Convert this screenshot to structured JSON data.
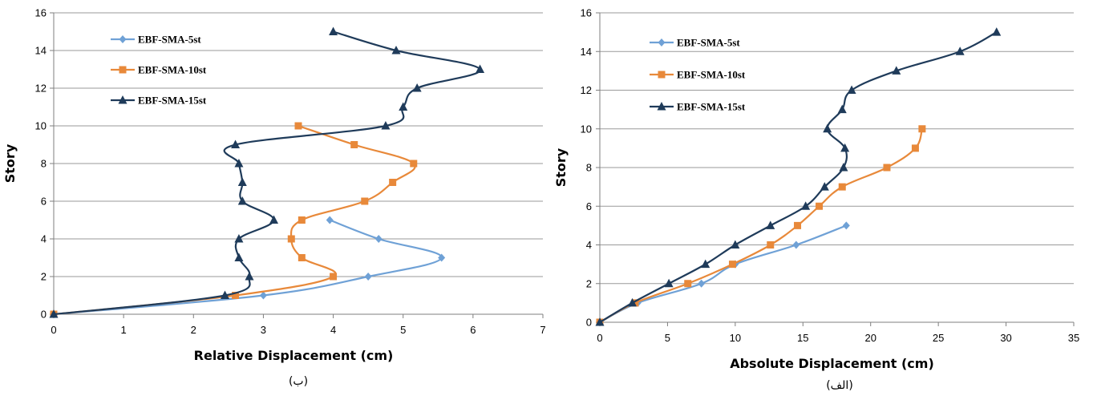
{
  "colors": {
    "EBF-SMA-5st": "#6fa1d6",
    "EBF-SMA-10st": "#e8893a",
    "EBF-SMA-15st": "#1f3b5a",
    "grid": "#9a9a9a"
  },
  "chart_data": [
    {
      "id": "left",
      "type": "line",
      "caption": "(ب)",
      "xlabel": "Relative Displacement (cm)",
      "ylabel": "Story",
      "xlim": [
        0,
        7
      ],
      "ylim": [
        0,
        16
      ],
      "xticks": [
        0,
        1,
        2,
        3,
        4,
        5,
        6,
        7
      ],
      "yticks": [
        0,
        2,
        4,
        6,
        8,
        10,
        12,
        14,
        16
      ],
      "grid": "horizontal",
      "legend_position": "top-left",
      "series": [
        {
          "name": "EBF-SMA-5st",
          "marker": "diamond",
          "points": [
            [
              0,
              0
            ],
            [
              3.0,
              1
            ],
            [
              4.5,
              2
            ],
            [
              5.55,
              3
            ],
            [
              4.65,
              4
            ],
            [
              3.95,
              5
            ]
          ]
        },
        {
          "name": "EBF-SMA-10st",
          "marker": "square",
          "points": [
            [
              0,
              0
            ],
            [
              2.6,
              1
            ],
            [
              4.0,
              2
            ],
            [
              3.55,
              3
            ],
            [
              3.4,
              4
            ],
            [
              3.55,
              5
            ],
            [
              4.45,
              6
            ],
            [
              4.85,
              7
            ],
            [
              5.15,
              8
            ],
            [
              4.3,
              9
            ],
            [
              3.5,
              10
            ]
          ]
        },
        {
          "name": "EBF-SMA-15st",
          "marker": "triangle",
          "points": [
            [
              0,
              0
            ],
            [
              2.45,
              1
            ],
            [
              2.8,
              2
            ],
            [
              2.65,
              3
            ],
            [
              2.65,
              4
            ],
            [
              3.15,
              5
            ],
            [
              2.7,
              6
            ],
            [
              2.7,
              7
            ],
            [
              2.65,
              8
            ],
            [
              2.6,
              9
            ],
            [
              4.75,
              10
            ],
            [
              5.0,
              11
            ],
            [
              5.2,
              12
            ],
            [
              6.1,
              13
            ],
            [
              4.9,
              14
            ],
            [
              4.0,
              15
            ]
          ]
        }
      ]
    },
    {
      "id": "right",
      "type": "line",
      "caption": "(الف)",
      "xlabel": "Absolute Displacement (cm)",
      "ylabel": "Story",
      "xlim": [
        0,
        35
      ],
      "ylim": [
        0,
        16
      ],
      "xticks": [
        0,
        5,
        10,
        15,
        20,
        25,
        30,
        35
      ],
      "yticks": [
        0,
        2,
        4,
        6,
        8,
        10,
        12,
        14,
        16
      ],
      "grid": "horizontal",
      "legend_position": "top-left",
      "series": [
        {
          "name": "EBF-SMA-5st",
          "marker": "diamond",
          "points": [
            [
              0,
              0
            ],
            [
              2.8,
              1
            ],
            [
              7.5,
              2
            ],
            [
              10.0,
              3
            ],
            [
              14.5,
              4
            ],
            [
              18.2,
              5
            ]
          ]
        },
        {
          "name": "EBF-SMA-10st",
          "marker": "square",
          "points": [
            [
              0,
              0
            ],
            [
              2.6,
              1
            ],
            [
              6.5,
              2
            ],
            [
              9.8,
              3
            ],
            [
              12.6,
              4
            ],
            [
              14.6,
              5
            ],
            [
              16.2,
              6
            ],
            [
              17.9,
              7
            ],
            [
              21.2,
              8
            ],
            [
              23.3,
              9
            ],
            [
              23.8,
              10
            ]
          ]
        },
        {
          "name": "EBF-SMA-15st",
          "marker": "triangle",
          "points": [
            [
              0,
              0
            ],
            [
              2.4,
              1
            ],
            [
              5.1,
              2
            ],
            [
              7.8,
              3
            ],
            [
              10.0,
              4
            ],
            [
              12.6,
              5
            ],
            [
              15.2,
              6
            ],
            [
              16.6,
              7
            ],
            [
              18.0,
              8
            ],
            [
              18.1,
              9
            ],
            [
              16.8,
              10
            ],
            [
              17.9,
              11
            ],
            [
              18.6,
              12
            ],
            [
              21.9,
              13
            ],
            [
              26.6,
              14
            ],
            [
              29.3,
              15
            ]
          ]
        }
      ]
    }
  ]
}
